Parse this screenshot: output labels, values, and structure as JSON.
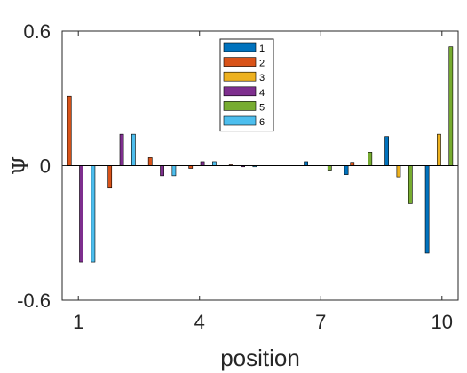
{
  "chart_data": {
    "type": "bar",
    "title": "",
    "xlabel": "position",
    "ylabel": "Ψ",
    "x": [
      1,
      2,
      3,
      4,
      5,
      6,
      7,
      8,
      9,
      10
    ],
    "x_ticks": [
      "1",
      "4",
      "7",
      "10"
    ],
    "y_ticks": [
      "-0.6",
      "0",
      "0.6"
    ],
    "ylim": [
      -0.6,
      0.6
    ],
    "grid": false,
    "legend_position": "top-center",
    "series": [
      {
        "name": "1",
        "color": "#0072BD",
        "values": [
          0.0,
          0.0,
          0.0,
          0.0,
          0.0,
          0.0,
          0.018,
          -0.04,
          0.13,
          -0.39
        ]
      },
      {
        "name": "2",
        "color": "#D95319",
        "values": [
          0.31,
          -0.1,
          0.036,
          -0.012,
          0.004,
          0.0,
          0.0,
          0.015,
          0.0,
          0.0
        ]
      },
      {
        "name": "3",
        "color": "#EDB120",
        "values": [
          0.0,
          0.0,
          0.0,
          0.0,
          0.0,
          0.0,
          0.0,
          0.0,
          -0.05,
          0.14
        ]
      },
      {
        "name": "4",
        "color": "#7E2F8E",
        "values": [
          -0.43,
          0.14,
          -0.045,
          0.018,
          -0.005,
          0.0,
          0.0,
          0.0,
          0.0,
          0.0
        ]
      },
      {
        "name": "5",
        "color": "#77AC30",
        "values": [
          0.0,
          0.0,
          0.0,
          0.0,
          0.0,
          0.0,
          -0.02,
          0.06,
          -0.17,
          0.53
        ]
      },
      {
        "name": "6",
        "color": "#4DBEEE",
        "values": [
          -0.43,
          0.14,
          -0.045,
          0.018,
          -0.005,
          0.0,
          0.0,
          0.0,
          0.0,
          0.0
        ]
      }
    ]
  }
}
